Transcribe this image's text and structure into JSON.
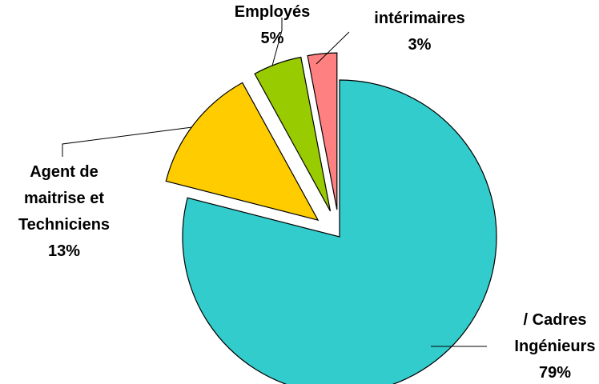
{
  "chart_data": {
    "type": "pie",
    "title": "",
    "exploded": true,
    "slices": [
      {
        "label_lines": [
          "/ Cadres",
          "Ingénieurs"
        ],
        "value": 79,
        "value_label": "79%",
        "color": "#33CCCC"
      },
      {
        "label_lines": [
          "Agent de",
          "maitrise et",
          "Techniciens"
        ],
        "value": 13,
        "value_label": "13%",
        "color": "#FFCC00"
      },
      {
        "label_lines": [
          "Employés"
        ],
        "value": 5,
        "value_label": "5%",
        "color": "#99CC00"
      },
      {
        "label_lines": [
          "intérimaires"
        ],
        "value": 3,
        "value_label": "3%",
        "color": "#FF8080"
      }
    ]
  }
}
